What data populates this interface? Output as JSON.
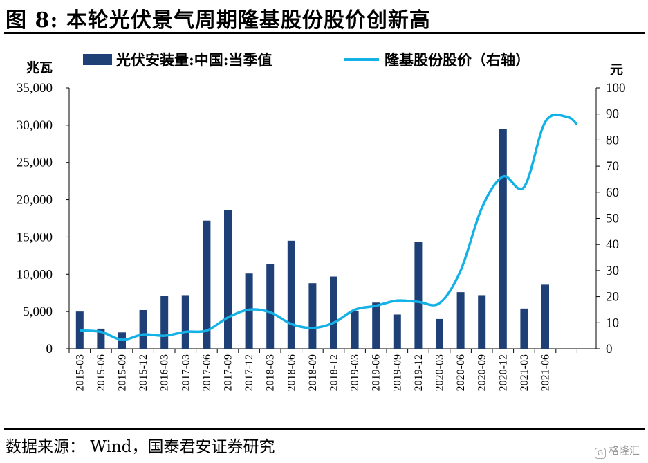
{
  "title": "图 8:  本轮光伏景气周期隆基股份股价创新高",
  "source": "数据来源：  Wind，国泰君安证券研究",
  "watermark": "格隆汇",
  "colors": {
    "bar": "#1F3F77",
    "line": "#13B1E6"
  },
  "chart_data": {
    "type": "bar+line",
    "categories": [
      "2015-03",
      "2015-06",
      "2015-09",
      "2015-12",
      "2016-03",
      "2017-03",
      "2017-06",
      "2017-09",
      "2017-12",
      "2018-03",
      "2018-06",
      "2018-09",
      "2018-12",
      "2019-03",
      "2019-06",
      "2019-09",
      "2019-12",
      "2020-03",
      "2020-06",
      "2020-09",
      "2020-12",
      "2021-03",
      "2021-06"
    ],
    "left_unit": "兆瓦",
    "right_unit": "元",
    "ylim_left": [
      0,
      35000
    ],
    "ylim_right": [
      0,
      100
    ],
    "left_ticks": [
      "0",
      "5,000",
      "10,000",
      "15,000",
      "20,000",
      "25,000",
      "30,000",
      "35,000"
    ],
    "right_ticks": [
      "0",
      "10",
      "20",
      "30",
      "40",
      "50",
      "60",
      "70",
      "80",
      "90",
      "100"
    ],
    "legend": {
      "bar_label": "光伏安装量:中国:当季值",
      "line_label": "隆基股份股价（右轴）",
      "placement": "top"
    },
    "series": [
      {
        "name": "光伏安装量:中国:当季值",
        "type": "bar",
        "axis": "left",
        "values": [
          5000,
          2700,
          2200,
          5200,
          7100,
          7200,
          17200,
          18600,
          10100,
          11400,
          14500,
          8800,
          9700,
          5100,
          6200,
          4600,
          14300,
          4000,
          7600,
          7200,
          29500,
          5400,
          8600
        ]
      },
      {
        "name": "隆基股份股价（右轴）",
        "type": "line",
        "axis": "right",
        "smooth": true,
        "x": [
          0,
          1,
          2,
          3,
          4,
          5,
          6,
          7,
          8,
          9,
          10,
          11,
          12,
          13,
          14,
          15,
          16,
          17,
          18,
          19,
          20,
          21,
          22,
          23,
          23.5
        ],
        "values": [
          7,
          6.5,
          3.5,
          5.5,
          5,
          6.5,
          7,
          12,
          15,
          14,
          9.5,
          8,
          10,
          15,
          16.5,
          18.5,
          18,
          17.5,
          30,
          54,
          66,
          62,
          87,
          89,
          86
        ]
      }
    ]
  }
}
